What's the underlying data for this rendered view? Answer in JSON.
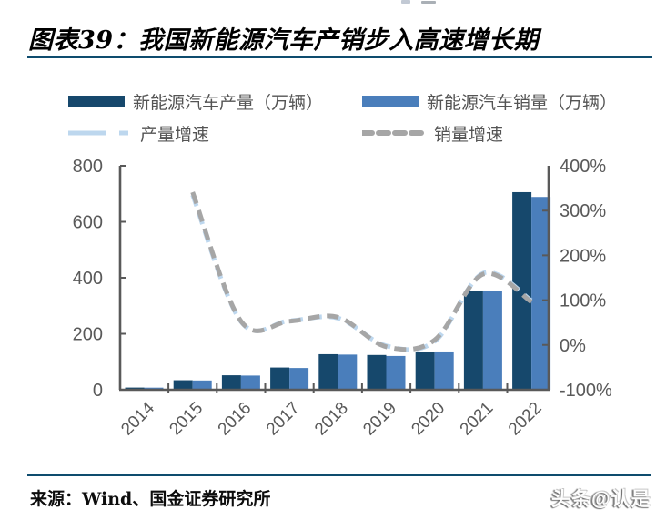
{
  "header": {
    "title": "图表39：我国新能源汽车产销步入高速增长期"
  },
  "legend": {
    "items": [
      {
        "label": "新能源汽车产量（万辆）",
        "type": "bar",
        "series": 0
      },
      {
        "label": "新能源汽车销量（万辆）",
        "type": "bar",
        "series": 1
      },
      {
        "label": "产量增速",
        "type": "line",
        "series": 2
      },
      {
        "label": "销量增速",
        "type": "line",
        "series": 3
      }
    ]
  },
  "footer": {
    "source": "来源：Wind、国金证券研究所",
    "watermark": "头条@认是"
  },
  "colors": {
    "production_bar": "#16486C",
    "sales_bar": "#4A7EBB",
    "production_line": "#BDD7EE",
    "sales_line": "#A6A6A6",
    "axis": "#595959",
    "label_text": "#595959",
    "divider": "#0E4C6E"
  },
  "chart_data": {
    "type": "combo",
    "categories": [
      "2014",
      "2015",
      "2016",
      "2017",
      "2018",
      "2019",
      "2020",
      "2021",
      "2022"
    ],
    "series": [
      {
        "name": "新能源汽车产量（万辆）",
        "type": "bar",
        "axis": "left",
        "color": "#16486C",
        "values": [
          7.8,
          34.0,
          51.7,
          79.4,
          127.0,
          124.2,
          136.6,
          354.5,
          705.8
        ]
      },
      {
        "name": "新能源汽车销量（万辆）",
        "type": "bar",
        "axis": "left",
        "color": "#4A7EBB",
        "values": [
          7.5,
          33.1,
          50.7,
          77.7,
          125.6,
          120.6,
          136.7,
          352.1,
          688.7
        ]
      },
      {
        "name": "产量增速",
        "type": "line",
        "style": "dashed",
        "smooth": true,
        "axis": "right",
        "color": "#BDD7EE",
        "values": [
          null,
          335,
          52,
          54,
          60,
          -2,
          8,
          160,
          99
        ]
      },
      {
        "name": "销量增速",
        "type": "line",
        "style": "dashed",
        "smooth": true,
        "axis": "right",
        "color": "#A6A6A6",
        "values": [
          null,
          341,
          53,
          53,
          62,
          -4,
          11,
          158,
          96
        ]
      }
    ],
    "left_axis": {
      "min": 0,
      "max": 800,
      "tick_labels": [
        "0",
        "200",
        "400",
        "600",
        "800"
      ],
      "unit": "万辆"
    },
    "right_axis": {
      "min": -100,
      "max": 400,
      "tick_labels": [
        "-100%",
        "0%",
        "100%",
        "200%",
        "300%",
        "400%"
      ],
      "unit": "%"
    },
    "grid": false,
    "legend_position": "top",
    "x_label_rotation": -45
  }
}
